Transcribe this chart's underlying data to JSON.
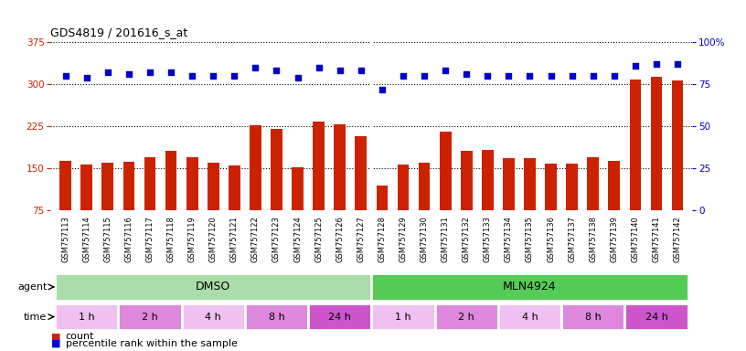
{
  "title": "GDS4819 / 201616_s_at",
  "samples": [
    "GSM757113",
    "GSM757114",
    "GSM757115",
    "GSM757116",
    "GSM757117",
    "GSM757118",
    "GSM757119",
    "GSM757120",
    "GSM757121",
    "GSM757122",
    "GSM757123",
    "GSM757124",
    "GSM757125",
    "GSM757126",
    "GSM757127",
    "GSM757128",
    "GSM757129",
    "GSM757130",
    "GSM757131",
    "GSM757132",
    "GSM757133",
    "GSM757134",
    "GSM757135",
    "GSM757136",
    "GSM757137",
    "GSM757138",
    "GSM757139",
    "GSM757140",
    "GSM757141",
    "GSM757142"
  ],
  "counts": [
    163,
    157,
    160,
    162,
    170,
    182,
    170,
    161,
    155,
    227,
    220,
    152,
    233,
    228,
    208,
    120,
    157,
    161,
    215,
    182,
    183,
    168,
    168,
    158,
    158,
    170,
    163,
    308,
    313,
    306
  ],
  "percentiles": [
    80,
    79,
    82,
    81,
    82,
    82,
    80,
    80,
    80,
    85,
    83,
    79,
    85,
    83,
    83,
    72,
    80,
    80,
    83,
    81,
    80,
    80,
    80,
    80,
    80,
    80,
    80,
    86,
    87,
    87
  ],
  "ylim_left": [
    75,
    375
  ],
  "ylim_right": [
    0,
    100
  ],
  "yticks_left": [
    75,
    150,
    225,
    300,
    375
  ],
  "yticks_right": [
    0,
    25,
    50,
    75,
    100
  ],
  "bar_color": "#cc2200",
  "dot_color": "#0000cc",
  "plot_bg": "#ffffff",
  "label_bg": "#d8d8d8",
  "agent_groups": [
    {
      "name": "DMSO",
      "start": 0,
      "end": 14,
      "color": "#aaddaa"
    },
    {
      "name": "MLN4924",
      "start": 15,
      "end": 29,
      "color": "#55cc55"
    }
  ],
  "time_groups": [
    {
      "name": "1 h",
      "start": 0,
      "end": 2,
      "color": "#f0c0f0"
    },
    {
      "name": "2 h",
      "start": 3,
      "end": 5,
      "color": "#dd88dd"
    },
    {
      "name": "4 h",
      "start": 6,
      "end": 8,
      "color": "#f0c0f0"
    },
    {
      "name": "8 h",
      "start": 9,
      "end": 11,
      "color": "#dd88dd"
    },
    {
      "name": "24 h",
      "start": 12,
      "end": 14,
      "color": "#cc55cc"
    },
    {
      "name": "1 h",
      "start": 15,
      "end": 17,
      "color": "#f0c0f0"
    },
    {
      "name": "2 h",
      "start": 18,
      "end": 20,
      "color": "#dd88dd"
    },
    {
      "name": "4 h",
      "start": 21,
      "end": 23,
      "color": "#f0c0f0"
    },
    {
      "name": "8 h",
      "start": 24,
      "end": 26,
      "color": "#dd88dd"
    },
    {
      "name": "24 h",
      "start": 27,
      "end": 29,
      "color": "#cc55cc"
    }
  ]
}
